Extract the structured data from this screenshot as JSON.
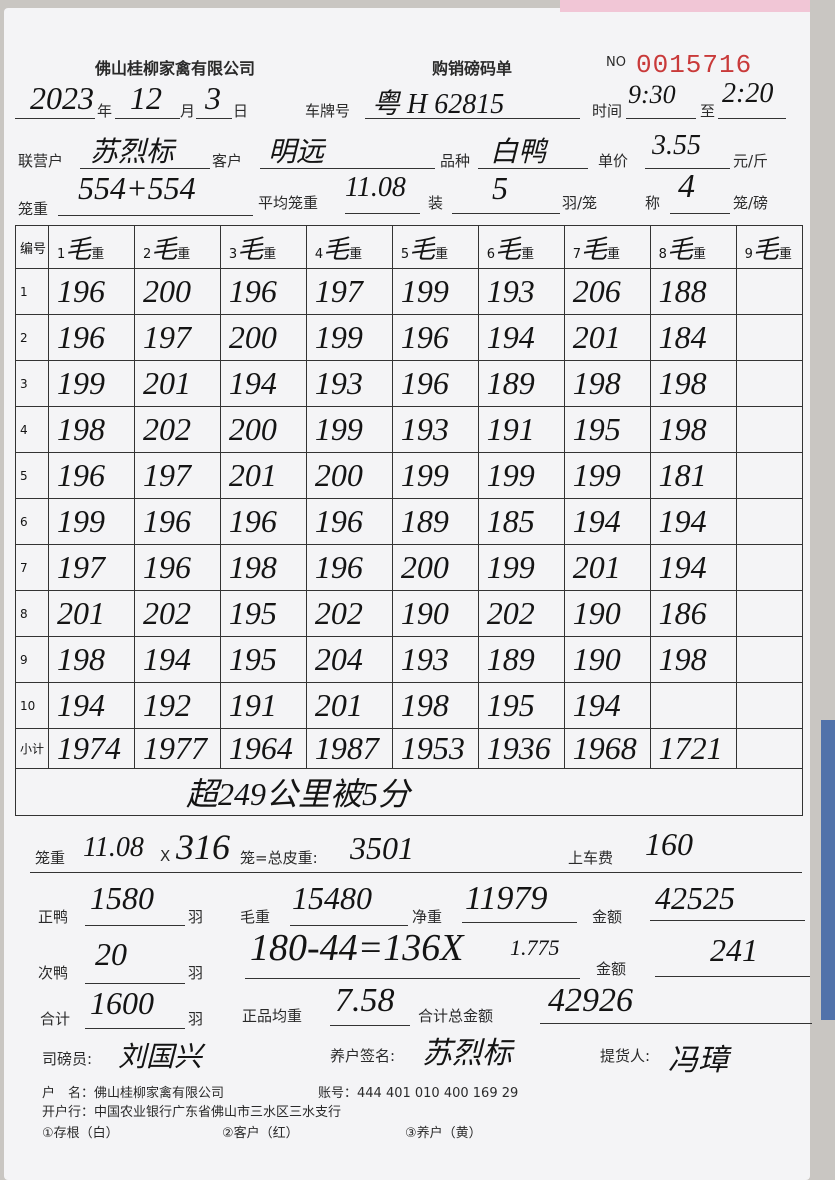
{
  "header": {
    "company": "佛山桂柳家禽有限公司",
    "form_title": "购销磅码单",
    "no_label": "NO",
    "no_value": "0015716"
  },
  "fields": {
    "year": "2023",
    "year_label": "年",
    "month": "12",
    "month_label": "月",
    "day": "3",
    "day_label": "日",
    "plate_label": "车牌号",
    "plate": "粤 H 62815",
    "time_label": "时间",
    "time_from": "9:30",
    "time_to_label": "至",
    "time_to": "2:20",
    "partner_label": "联营户",
    "partner": "苏烈标",
    "customer_label": "客户",
    "customer": "明远",
    "breed_label": "品种",
    "breed": "白鸭",
    "price_label": "单价",
    "price": "3.55",
    "price_unit": "元/斤",
    "cage_weight_label": "笼重",
    "cage_weight": "554+554",
    "avg_cage_label": "平均笼重",
    "avg_cage": "11.08",
    "pack_label": "装",
    "pack": "5",
    "pack_unit": "羽/笼",
    "weigh_label": "称",
    "weigh": "4",
    "weigh_unit": "笼/磅"
  },
  "table": {
    "index_header": "编号",
    "col_prefix": [
      "1",
      "2",
      "3",
      "4",
      "5",
      "6",
      "7",
      "8",
      "9"
    ],
    "mao": "毛",
    "zhong": "重",
    "rows": [
      {
        "no": "1",
        "v": [
          "196",
          "200",
          "196",
          "197",
          "199",
          "193",
          "206",
          "188",
          ""
        ]
      },
      {
        "no": "2",
        "v": [
          "196",
          "197",
          "200",
          "199",
          "196",
          "194",
          "201",
          "184",
          ""
        ]
      },
      {
        "no": "3",
        "v": [
          "199",
          "201",
          "194",
          "193",
          "196",
          "189",
          "198",
          "198",
          ""
        ]
      },
      {
        "no": "4",
        "v": [
          "198",
          "202",
          "200",
          "199",
          "193",
          "191",
          "195",
          "198",
          ""
        ]
      },
      {
        "no": "5",
        "v": [
          "196",
          "197",
          "201",
          "200",
          "199",
          "199",
          "199",
          "181",
          ""
        ]
      },
      {
        "no": "6",
        "v": [
          "199",
          "196",
          "196",
          "196",
          "189",
          "185",
          "194",
          "194",
          ""
        ]
      },
      {
        "no": "7",
        "v": [
          "197",
          "196",
          "198",
          "196",
          "200",
          "199",
          "201",
          "194",
          ""
        ]
      },
      {
        "no": "8",
        "v": [
          "201",
          "202",
          "195",
          "202",
          "190",
          "202",
          "190",
          "186",
          ""
        ]
      },
      {
        "no": "9",
        "v": [
          "198",
          "194",
          "195",
          "204",
          "193",
          "189",
          "190",
          "198",
          ""
        ]
      },
      {
        "no": "10",
        "v": [
          "194",
          "192",
          "191",
          "201",
          "198",
          "195",
          "194",
          "",
          ""
        ]
      }
    ],
    "subtotal_label": "小计",
    "subtotal": [
      "1974",
      "1977",
      "1964",
      "1987",
      "1953",
      "1936",
      "1968",
      "1721",
      ""
    ],
    "note": "超249公里被5分"
  },
  "summary": {
    "cage_label": "笼重",
    "cage_weight": "11.08",
    "x": "X",
    "cage_count": "316",
    "tare_label": "笼=总皮重:",
    "tare": "3501",
    "loading_fee_label": "上车费",
    "loading_fee": "160",
    "good_label": "正鸭",
    "good": "1580",
    "good_unit": "羽",
    "gross_label": "毛重",
    "gross": "15480",
    "net_label": "净重",
    "net": "11979",
    "amount_label": "金额",
    "amount": "42525",
    "sub_label": "次鸭",
    "sub": "20",
    "sub_unit": "羽",
    "sub_calc": "180-44=136X",
    "sub_price": "1.775",
    "sub_amount_label": "金额",
    "sub_amount": "241",
    "total_label": "合计",
    "total": "1600",
    "total_unit": "羽",
    "avg_label": "正品均重",
    "avg": "7.58",
    "grand_label": "合计总金额",
    "grand": "42926",
    "weigher_label": "司磅员:",
    "weigher": "刘国兴",
    "farmer_label": "养户签名:",
    "farmer": "苏烈标",
    "picker_label": "提货人:",
    "picker": "冯璋"
  },
  "footer": {
    "account_name": "户　名：佛山桂柳家禽有限公司",
    "account_no": "账号：444 401 010 400 169 29",
    "bank": "开户行：中国农业银行广东省佛山市三水区三水支行",
    "copy1": "①存根（白）",
    "copy2": "②客户（红）",
    "copy3": "③养户（黄）"
  }
}
